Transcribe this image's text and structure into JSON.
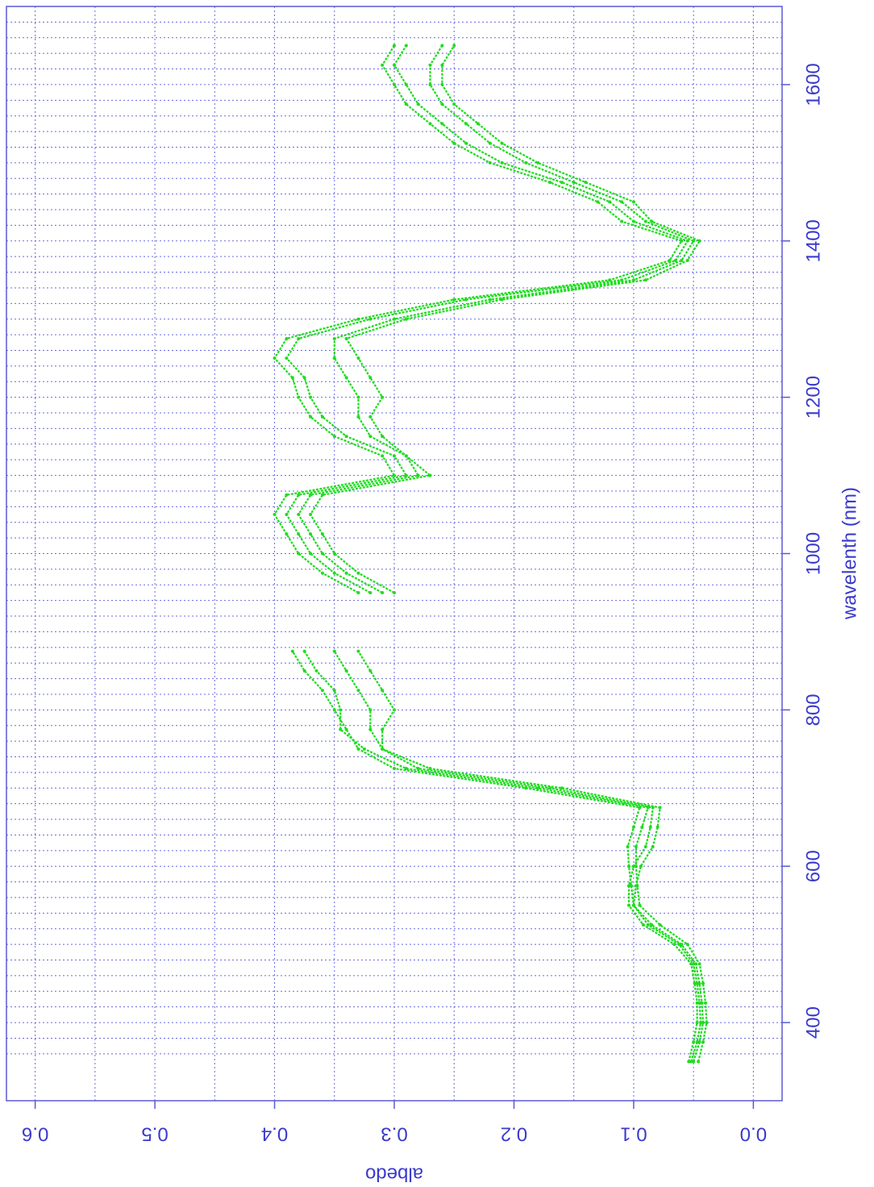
{
  "chart_data": {
    "type": "scatter",
    "x_label": "wavelenth (nm)",
    "y_label": "albedo",
    "xlim": [
      300,
      1700
    ],
    "ylim": [
      -0.024,
      0.624
    ],
    "xticks": [
      400,
      600,
      800,
      1000,
      1200,
      1400,
      1600
    ],
    "yticks": [
      {
        "value": 0,
        "label": "0.0"
      },
      0.1,
      0.2,
      0.3,
      0.4,
      0.5,
      0.6
    ],
    "x_grid": [
      360,
      380,
      400,
      420,
      440,
      460,
      480,
      500,
      520,
      540,
      560,
      580,
      600,
      620,
      640,
      660,
      680,
      700,
      720,
      740,
      760,
      780,
      800,
      820,
      840,
      860,
      880,
      900,
      920,
      940,
      960,
      980,
      1000,
      1020,
      1040,
      1060,
      1080,
      1100,
      1120,
      1140,
      1160,
      1180,
      1200,
      1220,
      1240,
      1260,
      1280,
      1300,
      1320,
      1340,
      1360,
      1380,
      1400,
      1420,
      1440,
      1460,
      1480,
      1500,
      1520,
      1540,
      1560,
      1580,
      1600,
      1620,
      1640,
      1660,
      1680
    ],
    "y_grid": [
      0,
      0.05,
      0.1,
      0.15,
      0.2,
      0.25,
      0.3,
      0.35,
      0.4,
      0.45,
      0.5,
      0.55,
      0.6
    ],
    "grid": true,
    "x": [
      350,
      375,
      400,
      425,
      450,
      475,
      500,
      525,
      550,
      575,
      600,
      625,
      650,
      675,
      700,
      725,
      750,
      775,
      800,
      825,
      850,
      875,
      900,
      925,
      950,
      975,
      1000,
      1025,
      1050,
      1075,
      1100,
      1125,
      1150,
      1175,
      1200,
      1225,
      1250,
      1275,
      1300,
      1325,
      1350,
      1375,
      1400,
      1425,
      1450,
      1475,
      1500,
      1525,
      1550,
      1575,
      1600,
      1625,
      1650
    ],
    "series": [
      {
        "color": "#1fdc1f",
        "values": [
          0.05,
          0.045,
          0.042,
          0.043,
          0.045,
          0.048,
          0.06,
          0.085,
          0.1,
          0.102,
          0.104,
          0.105,
          0.1,
          0.095,
          0.19,
          0.3,
          0.33,
          0.34,
          0.35,
          0.36,
          0.375,
          0.385,
          null,
          null,
          0.33,
          0.36,
          0.38,
          0.39,
          0.4,
          0.39,
          0.3,
          0.31,
          0.35,
          0.37,
          0.38,
          0.385,
          0.4,
          0.39,
          0.33,
          0.25,
          0.12,
          0.07,
          0.06,
          0.11,
          0.13,
          0.17,
          0.22,
          0.25,
          0.27,
          0.29,
          0.3,
          0.31,
          0.3
        ]
      },
      {
        "color": "#1fdc1f",
        "values": [
          0.046,
          0.042,
          0.039,
          0.04,
          0.042,
          0.045,
          0.055,
          0.078,
          0.095,
          0.097,
          0.098,
          0.098,
          0.093,
          0.088,
          0.18,
          0.29,
          0.325,
          0.345,
          0.345,
          0.35,
          0.365,
          0.375,
          null,
          null,
          0.32,
          0.35,
          0.37,
          0.38,
          0.39,
          0.38,
          0.29,
          0.3,
          0.34,
          0.36,
          0.37,
          0.375,
          0.39,
          0.38,
          0.32,
          0.24,
          0.11,
          0.065,
          0.055,
          0.1,
          0.12,
          0.16,
          0.21,
          0.24,
          0.26,
          0.28,
          0.29,
          0.3,
          0.29
        ]
      },
      {
        "color": "#1fdc1f",
        "values": [
          0.054,
          0.05,
          0.047,
          0.047,
          0.049,
          0.052,
          0.066,
          0.092,
          0.104,
          0.104,
          0.1,
          0.09,
          0.086,
          0.084,
          0.17,
          0.28,
          0.31,
          0.32,
          0.32,
          0.33,
          0.34,
          0.35,
          null,
          null,
          0.31,
          0.34,
          0.36,
          0.37,
          0.38,
          0.37,
          0.28,
          0.29,
          0.32,
          0.33,
          0.33,
          0.34,
          0.35,
          0.35,
          0.3,
          0.22,
          0.1,
          0.06,
          0.05,
          0.09,
          0.11,
          0.15,
          0.19,
          0.22,
          0.24,
          0.26,
          0.27,
          0.27,
          0.26
        ]
      },
      {
        "color": "#1fdc1f",
        "values": [
          0.052,
          0.047,
          0.044,
          0.045,
          0.047,
          0.05,
          0.062,
          0.088,
          0.1,
          0.098,
          0.094,
          0.084,
          0.08,
          0.078,
          0.16,
          0.27,
          0.31,
          0.31,
          0.3,
          0.31,
          0.32,
          0.33,
          null,
          null,
          0.3,
          0.33,
          0.35,
          0.36,
          0.37,
          0.36,
          0.27,
          0.29,
          0.31,
          0.32,
          0.31,
          0.32,
          0.33,
          0.34,
          0.29,
          0.21,
          0.09,
          0.055,
          0.045,
          0.085,
          0.1,
          0.14,
          0.18,
          0.21,
          0.23,
          0.25,
          0.26,
          0.26,
          0.25
        ]
      }
    ]
  }
}
